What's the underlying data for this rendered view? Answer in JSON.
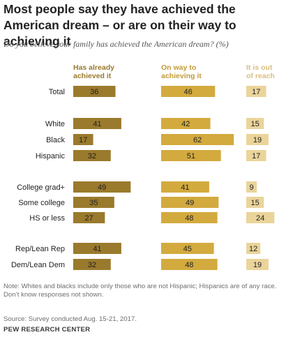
{
  "title": "Most people say they have achieved the American dream – or are on their way to achieving it",
  "subtitle": "Do you believe your family has achieved the American dream? (%)",
  "chart_data": {
    "type": "bar",
    "subtype": "horizontal-grouped-by-column",
    "categories": [
      "Total",
      "White",
      "Black",
      "Hispanic",
      "College grad+",
      "Some college",
      "HS or less",
      "Rep/Lean Rep",
      "Dem/Lean Dem"
    ],
    "groups": [
      {
        "rows": [
          "Total"
        ]
      },
      {
        "rows": [
          "White",
          "Black",
          "Hispanic"
        ]
      },
      {
        "rows": [
          "College grad+",
          "Some college",
          "HS or less"
        ]
      },
      {
        "rows": [
          "Rep/Lean Rep",
          "Dem/Lean Dem"
        ]
      }
    ],
    "series": [
      {
        "name": "Has already achieved it",
        "color": "#9a7a2c",
        "label_color": "#9a7a2c",
        "values": [
          36,
          41,
          17,
          32,
          49,
          35,
          27,
          41,
          32
        ]
      },
      {
        "name": "On way to achieving it",
        "color": "#d3aa3e",
        "label_color": "#c29b38",
        "values": [
          46,
          42,
          62,
          51,
          41,
          49,
          48,
          45,
          48
        ]
      },
      {
        "name": "It is out of reach",
        "color": "#ead49a",
        "label_color": "#d9be7f",
        "values": [
          17,
          15,
          19,
          17,
          9,
          15,
          24,
          12,
          19
        ]
      }
    ],
    "xlim": [
      0,
      100
    ],
    "legend": "column headers above bars"
  },
  "notes": {
    "note": "Note: Whites and blacks include only those who are not Hispanic; Hispanics are of any race. Don’t know responses not shown.",
    "source": "Source: Survey conducted Aug. 15-21, 2017.",
    "org": "PEW RESEARCH CENTER"
  }
}
